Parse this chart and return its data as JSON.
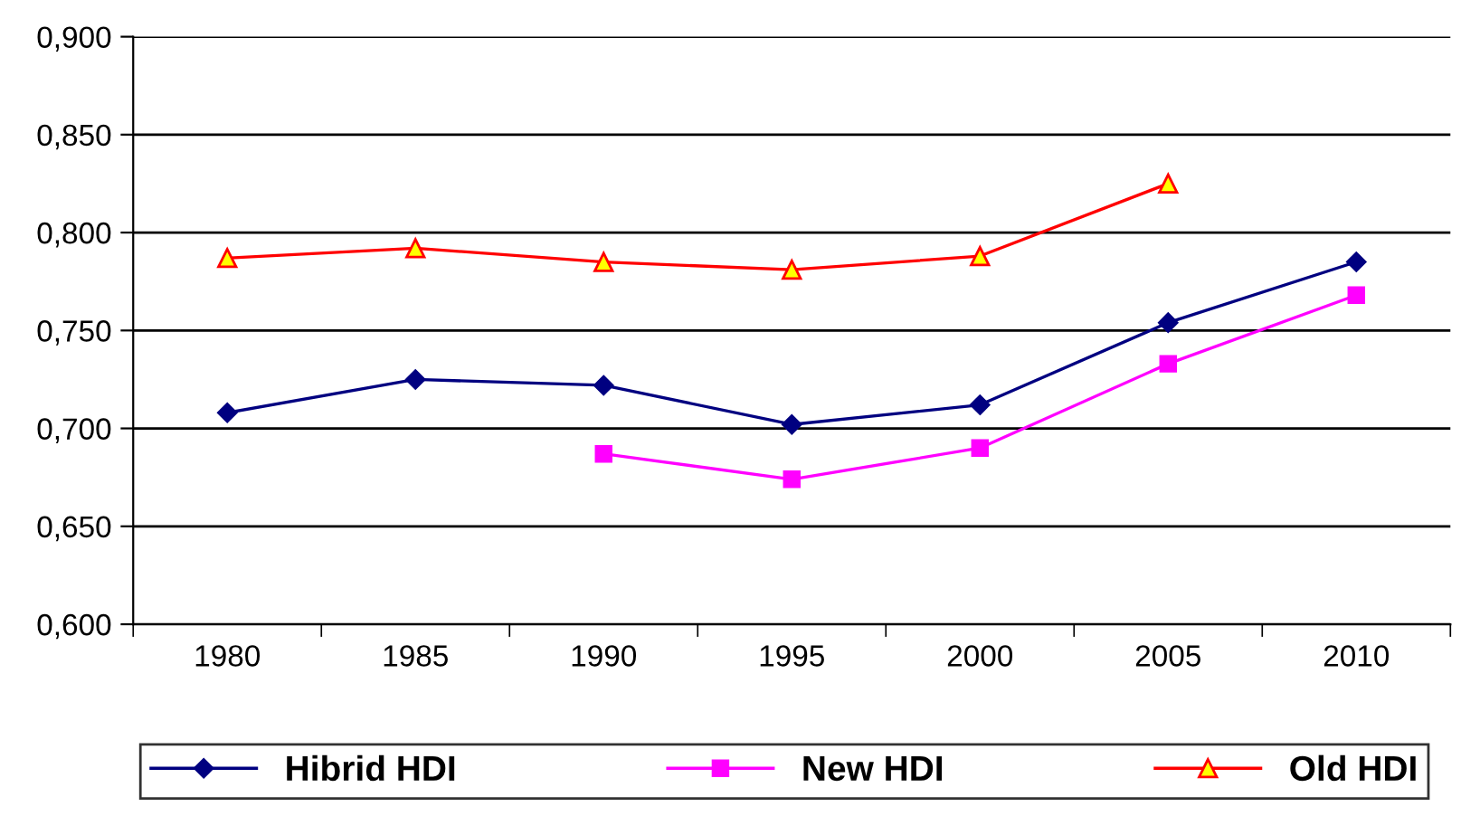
{
  "chart_data": {
    "type": "line",
    "categories": [
      "1980",
      "1985",
      "1990",
      "1995",
      "2000",
      "2005",
      "2010"
    ],
    "series": [
      {
        "name": "Hibrid HDI",
        "color": "#000080",
        "marker": "diamond",
        "values": [
          0.708,
          0.725,
          0.722,
          0.702,
          0.712,
          0.754,
          0.785
        ]
      },
      {
        "name": "New HDI",
        "color": "#ff00ff",
        "marker": "square",
        "values": [
          null,
          null,
          0.687,
          0.674,
          0.69,
          0.733,
          0.768
        ]
      },
      {
        "name": "Old HDI",
        "color": "#ff0000",
        "marker": "triangle",
        "values": [
          0.787,
          0.792,
          0.785,
          0.781,
          0.788,
          0.825,
          null
        ]
      }
    ],
    "ylim": [
      0.6,
      0.9
    ],
    "yticks": [
      {
        "value": 0.6,
        "label": "0,600"
      },
      {
        "value": 0.65,
        "label": "0,650"
      },
      {
        "value": 0.7,
        "label": "0,700"
      },
      {
        "value": 0.75,
        "label": "0,750"
      },
      {
        "value": 0.8,
        "label": "0,800"
      },
      {
        "value": 0.85,
        "label": "0,850"
      },
      {
        "value": 0.9,
        "label": "0,900"
      }
    ],
    "grid": "y",
    "legend": "bottom",
    "line_style": "solid"
  }
}
